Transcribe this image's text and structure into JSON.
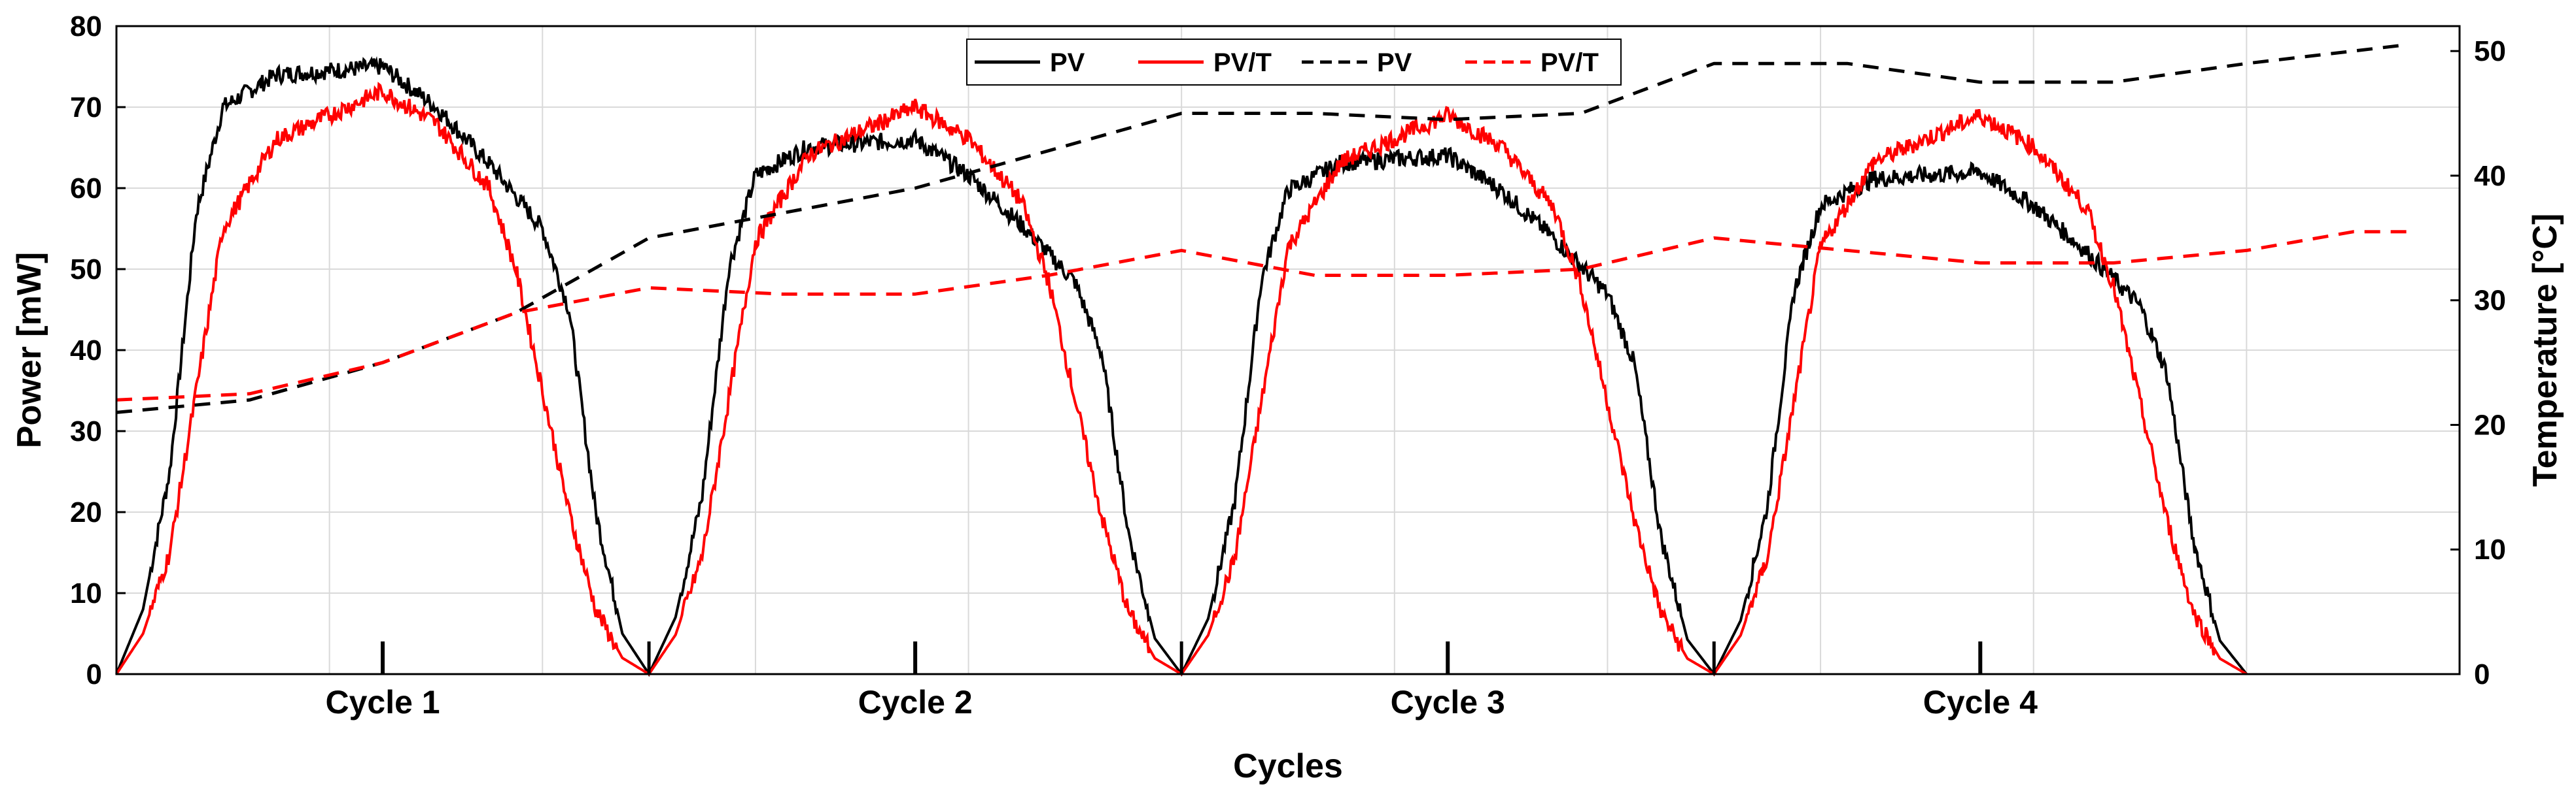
{
  "chart_data": {
    "type": "line",
    "xlabel": "Cycles",
    "ylabel_left": "Power [mW]",
    "ylabel_right": "Temperature [°C]",
    "ylim_left": [
      0,
      80
    ],
    "ylim_right": [
      0,
      52
    ],
    "yticks_left": [
      0,
      10,
      20,
      30,
      40,
      50,
      60,
      70,
      80
    ],
    "yticks_right": [
      0,
      10,
      20,
      30,
      40,
      50
    ],
    "xlim": [
      0,
      4.4
    ],
    "grid": true,
    "categories": [
      "Cycle 1",
      "Cycle 2",
      "Cycle 3",
      "Cycle 4"
    ],
    "category_positions": [
      0.5,
      1.5,
      2.5,
      3.5
    ],
    "legend": {
      "position": "top-center",
      "entries": [
        "PV",
        "PV/T",
        "PV",
        "PV/T"
      ]
    },
    "power_series": [
      {
        "name": "PV",
        "axis": "left",
        "color": "#000000",
        "style": "solid",
        "peaks": [
          75,
          66,
          64,
          62
        ],
        "starts": [
          0.0,
          1.0,
          2.0,
          3.0
        ],
        "rise_points": [
          [
            0.0,
            0
          ],
          [
            0.05,
            8
          ],
          [
            0.1,
            25
          ],
          [
            0.15,
            57
          ],
          [
            0.2,
            70
          ],
          [
            0.3,
            74
          ],
          [
            0.5,
            75
          ],
          [
            0.6,
            70
          ],
          [
            0.7,
            63
          ],
          [
            0.8,
            55
          ],
          [
            0.85,
            45
          ],
          [
            0.9,
            20
          ],
          [
            0.95,
            5
          ],
          [
            1.0,
            0
          ]
        ]
      },
      {
        "name": "PV/T",
        "axis": "left",
        "color": "#ff0000",
        "style": "solid",
        "peaks": [
          72,
          70,
          69,
          69
        ],
        "starts": [
          0.0,
          1.0,
          2.0,
          3.0
        ],
        "rise_points": [
          [
            0.0,
            0
          ],
          [
            0.05,
            5
          ],
          [
            0.1,
            15
          ],
          [
            0.15,
            35
          ],
          [
            0.2,
            55
          ],
          [
            0.3,
            66
          ],
          [
            0.5,
            72
          ],
          [
            0.6,
            68
          ],
          [
            0.7,
            60
          ],
          [
            0.75,
            50
          ],
          [
            0.8,
            35
          ],
          [
            0.85,
            20
          ],
          [
            0.9,
            8
          ],
          [
            0.95,
            2
          ],
          [
            1.0,
            0
          ]
        ]
      }
    ],
    "temperature_series": [
      {
        "name": "PV",
        "axis": "right",
        "color": "#000000",
        "style": "dashed",
        "x": [
          0.0,
          0.25,
          0.5,
          0.75,
          1.0,
          1.25,
          1.5,
          1.75,
          2.0,
          2.25,
          2.5,
          2.75,
          3.0,
          3.25,
          3.5,
          3.75,
          4.0,
          4.2,
          4.3
        ],
        "y": [
          21,
          22,
          25,
          29,
          35,
          37,
          39,
          42,
          45,
          45,
          44.5,
          45,
          49,
          49,
          47.5,
          47.5,
          49,
          50,
          50.5
        ]
      },
      {
        "name": "PV/T",
        "axis": "right",
        "color": "#ff0000",
        "style": "dashed",
        "x": [
          0.0,
          0.25,
          0.5,
          0.75,
          1.0,
          1.25,
          1.5,
          1.75,
          2.0,
          2.25,
          2.5,
          2.75,
          3.0,
          3.25,
          3.5,
          3.75,
          4.0,
          4.2,
          4.3
        ],
        "y": [
          22,
          22.5,
          25,
          29,
          31,
          30.5,
          30.5,
          32,
          34,
          32,
          32,
          32.5,
          35,
          34,
          33,
          33,
          34,
          35.5,
          35.5
        ]
      }
    ]
  }
}
